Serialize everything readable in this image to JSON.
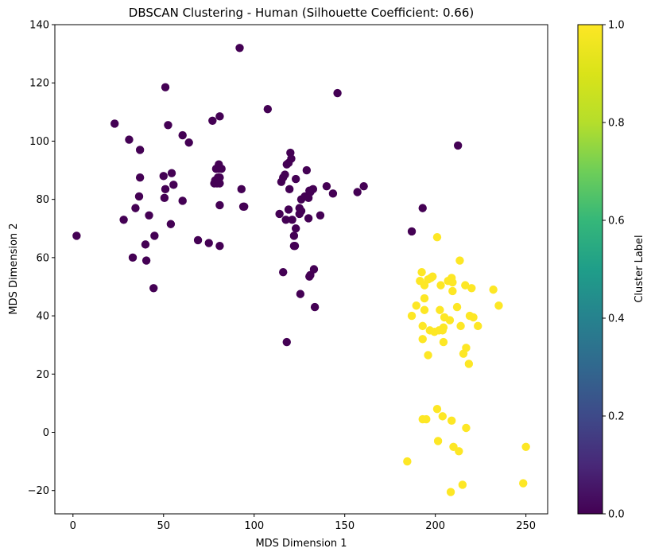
{
  "chart_data": {
    "type": "scatter",
    "title": "DBSCAN Clustering - Human (Silhouette Coefficient: 0.66)",
    "xlabel": "MDS Dimension 1",
    "ylabel": "MDS Dimension 2",
    "xlim": [
      -10,
      262
    ],
    "ylim": [
      -28,
      140
    ],
    "xticks": [
      "0",
      "50",
      "100",
      "150",
      "200",
      "250"
    ],
    "xtick_values": [
      0,
      50,
      100,
      150,
      200,
      250
    ],
    "yticks": [
      "−20",
      "0",
      "20",
      "40",
      "60",
      "80",
      "100",
      "120",
      "140"
    ],
    "ytick_values": [
      -20,
      0,
      20,
      40,
      60,
      80,
      100,
      120,
      140
    ],
    "grid": false,
    "colorbar": {
      "label": "Cluster Label",
      "colormap": "viridis",
      "range": [
        0.0,
        1.0
      ],
      "ticks": [
        "0.0",
        "0.2",
        "0.4",
        "0.6",
        "0.8",
        "1.0"
      ],
      "tick_values": [
        0.0,
        0.2,
        0.4,
        0.6,
        0.8,
        1.0
      ]
    },
    "colors": {
      "cluster_0": "#440154",
      "cluster_1": "#fde725"
    },
    "series": [
      {
        "label_value": 0,
        "points": [
          [
            2,
            67.5
          ],
          [
            23,
            106
          ],
          [
            28,
            73
          ],
          [
            31,
            100.5
          ],
          [
            33,
            60
          ],
          [
            34.5,
            77
          ],
          [
            36.5,
            81
          ],
          [
            37,
            97
          ],
          [
            37,
            87.5
          ],
          [
            40,
            64.5
          ],
          [
            40.5,
            59
          ],
          [
            42,
            74.5
          ],
          [
            44.5,
            49.5
          ],
          [
            45,
            67.5
          ],
          [
            50,
            88
          ],
          [
            50.5,
            80.5
          ],
          [
            51,
            83.5
          ],
          [
            51,
            118.5
          ],
          [
            52.5,
            105.5
          ],
          [
            54,
            71.5
          ],
          [
            54.5,
            89
          ],
          [
            55.5,
            85
          ],
          [
            60.5,
            102
          ],
          [
            60.5,
            79.5
          ],
          [
            64,
            99.5
          ],
          [
            69,
            66
          ],
          [
            75,
            65
          ],
          [
            77,
            107
          ],
          [
            78,
            85.5
          ],
          [
            78.5,
            86.5
          ],
          [
            79,
            90.5
          ],
          [
            79.5,
            85.5
          ],
          [
            80,
            87.5
          ],
          [
            80.5,
            92
          ],
          [
            80.5,
            90.5
          ],
          [
            81,
            85.5
          ],
          [
            81,
            87.5
          ],
          [
            81,
            64
          ],
          [
            81,
            108.5
          ],
          [
            82,
            90.5
          ],
          [
            81,
            78
          ],
          [
            92,
            132
          ],
          [
            93,
            83.5
          ],
          [
            94,
            77.5
          ],
          [
            94.5,
            77.5
          ],
          [
            107.5,
            111
          ],
          [
            114,
            75
          ],
          [
            115,
            86
          ],
          [
            116,
            55
          ],
          [
            116,
            87.5
          ],
          [
            117,
            88.5
          ],
          [
            117.5,
            73
          ],
          [
            118,
            31
          ],
          [
            118,
            92
          ],
          [
            119,
            92.5
          ],
          [
            119,
            76.5
          ],
          [
            119.5,
            83.5
          ],
          [
            120,
            96
          ],
          [
            120.5,
            94
          ],
          [
            121,
            73
          ],
          [
            122,
            64
          ],
          [
            122,
            67.5
          ],
          [
            122.5,
            64
          ],
          [
            123,
            87
          ],
          [
            123,
            70
          ],
          [
            125,
            75
          ],
          [
            125,
            77
          ],
          [
            125.5,
            47.5
          ],
          [
            126,
            76
          ],
          [
            126,
            80
          ],
          [
            128,
            81
          ],
          [
            129,
            90
          ],
          [
            130,
            73.5
          ],
          [
            130,
            80.5
          ],
          [
            130.5,
            53.5
          ],
          [
            130.5,
            83
          ],
          [
            131,
            54
          ],
          [
            131,
            82.5
          ],
          [
            132.5,
            83.5
          ],
          [
            133,
            56
          ],
          [
            133.5,
            43
          ],
          [
            136.5,
            74.5
          ],
          [
            140,
            84.5
          ],
          [
            143.5,
            82
          ],
          [
            146,
            116.5
          ],
          [
            157,
            82.5
          ],
          [
            160.5,
            84.5
          ],
          [
            187,
            69
          ],
          [
            193,
            77
          ],
          [
            212.5,
            98.5
          ]
        ]
      },
      {
        "label_value": 1,
        "points": [
          [
            184.5,
            -10
          ],
          [
            187,
            40
          ],
          [
            189.5,
            43.5
          ],
          [
            191.5,
            52
          ],
          [
            192.5,
            55
          ],
          [
            193,
            4.5
          ],
          [
            193,
            36.5
          ],
          [
            193,
            32
          ],
          [
            194,
            42
          ],
          [
            194,
            46
          ],
          [
            194,
            50.5
          ],
          [
            195,
            4.5
          ],
          [
            196,
            26.5
          ],
          [
            196,
            52.5
          ],
          [
            197,
            35
          ],
          [
            197.5,
            53
          ],
          [
            198.5,
            53.5
          ],
          [
            199.5,
            34.5
          ],
          [
            201,
            8
          ],
          [
            201,
            67
          ],
          [
            201.5,
            -3
          ],
          [
            202,
            35
          ],
          [
            202.5,
            42
          ],
          [
            203,
            50.5
          ],
          [
            204,
            5.5
          ],
          [
            204,
            35
          ],
          [
            204.5,
            31
          ],
          [
            204.5,
            36
          ],
          [
            205,
            39.5
          ],
          [
            207,
            52
          ],
          [
            208,
            38.5
          ],
          [
            208.5,
            -20.5
          ],
          [
            209,
            53
          ],
          [
            209,
            4
          ],
          [
            209.5,
            48.5
          ],
          [
            209.5,
            51.5
          ],
          [
            210,
            -5
          ],
          [
            212,
            43
          ],
          [
            213,
            -6.5
          ],
          [
            213.5,
            59
          ],
          [
            214,
            36.5
          ],
          [
            215,
            -18
          ],
          [
            215.5,
            27
          ],
          [
            216.5,
            50.5
          ],
          [
            217,
            1.5
          ],
          [
            217,
            29
          ],
          [
            218.5,
            23.5
          ],
          [
            219,
            40
          ],
          [
            220,
            49.5
          ],
          [
            221,
            39.5
          ],
          [
            223.5,
            36.5
          ],
          [
            232,
            49
          ],
          [
            235,
            43.5
          ],
          [
            248.5,
            -17.5
          ],
          [
            250,
            -5
          ]
        ]
      }
    ]
  }
}
